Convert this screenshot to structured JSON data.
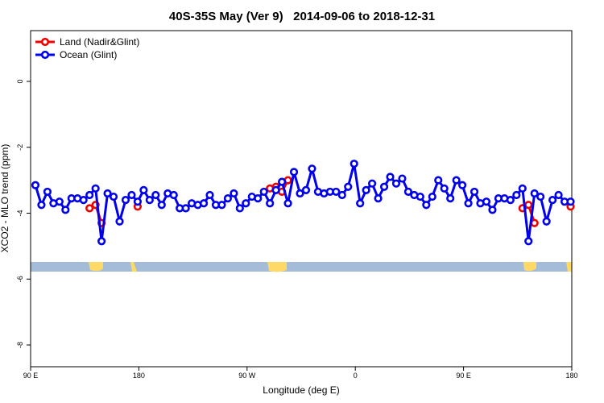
{
  "chart_data": {
    "type": "line",
    "title": "40S-35S May (Ver 9)   2014-09-06 to 2018-12-31",
    "xlabel": "Longitude (deg E)",
    "ylabel": "XCO2 - MLO trend (ppm)",
    "xlim": [
      90,
      540
    ],
    "ylim": [
      -8.66,
      1.54
    ],
    "xticks": [
      {
        "value": 90,
        "label": "90 E"
      },
      180,
      {
        "value": 270,
        "label": "90 W"
      },
      {
        "value": 360,
        "label": "0"
      },
      {
        "value": 450,
        "label": "90 E"
      },
      {
        "value": 540,
        "label": "180"
      }
    ],
    "yticks": [
      0,
      -2,
      -4,
      -6,
      -8
    ],
    "legend": "top-left",
    "series": [
      {
        "name": "Land (Nadir&Glint)",
        "color": "#ee0000",
        "x": [
          139,
          144,
          149,
          164,
          179,
          284,
          289,
          294,
          299,
          304,
          484,
          499,
          504,
          509,
          524,
          539
        ],
        "values": [
          -3.85,
          -3.75,
          -4.3,
          null,
          -3.8,
          null,
          -3.25,
          -3.2,
          -3.35,
          -3.0,
          null,
          -3.85,
          -3.75,
          -4.3,
          null,
          -3.8
        ]
      },
      {
        "name": "Ocean (Glint)",
        "color": "#0000ee",
        "x": [
          94,
          99,
          104,
          109,
          114,
          119,
          124,
          129,
          134,
          139,
          144,
          149,
          154,
          159,
          164,
          169,
          174,
          179,
          184,
          189,
          194,
          199,
          204,
          209,
          214,
          219,
          224,
          229,
          234,
          239,
          244,
          249,
          254,
          259,
          264,
          269,
          274,
          279,
          284,
          289,
          294,
          299,
          304,
          309,
          314,
          319,
          324,
          329,
          334,
          339,
          344,
          349,
          354,
          359,
          364,
          369,
          374,
          379,
          384,
          389,
          394,
          399,
          404,
          409,
          414,
          419,
          424,
          429,
          434,
          439,
          444,
          449,
          454,
          459,
          464,
          469,
          474,
          479,
          484,
          489,
          494,
          499,
          504,
          509,
          514,
          519,
          524,
          529,
          534,
          539
        ],
        "values": [
          -3.15,
          -3.75,
          -3.35,
          -3.7,
          -3.65,
          -3.9,
          -3.55,
          -3.55,
          -3.6,
          -3.45,
          -3.25,
          -4.85,
          -3.4,
          -3.5,
          -4.25,
          -3.6,
          -3.45,
          -3.65,
          -3.3,
          -3.6,
          -3.45,
          -3.75,
          -3.4,
          -3.45,
          -3.85,
          -3.85,
          -3.7,
          -3.75,
          -3.7,
          -3.45,
          -3.75,
          -3.75,
          -3.55,
          -3.4,
          -3.85,
          -3.7,
          -3.5,
          -3.55,
          -3.35,
          -3.7,
          -3.3,
          -3.05,
          -3.7,
          -2.75,
          -3.4,
          -3.3,
          -2.65,
          -3.35,
          -3.4,
          -3.35,
          -3.35,
          -3.45,
          -3.2,
          -2.5,
          -3.7,
          -3.3,
          -3.1,
          -3.55,
          -3.2,
          -2.9,
          -3.1,
          -2.95,
          -3.35,
          -3.45,
          -3.5,
          -3.75,
          -3.5,
          -3.0,
          -3.25,
          -3.55,
          -3.0,
          -3.15,
          -3.7,
          -3.35,
          -3.7,
          -3.65,
          -3.9,
          -3.55,
          -3.55,
          -3.6,
          -3.45,
          -3.25,
          -4.85,
          -3.4,
          -3.5,
          -4.25,
          -3.6,
          -3.45,
          -3.65,
          -3.65
        ]
      }
    ]
  }
}
